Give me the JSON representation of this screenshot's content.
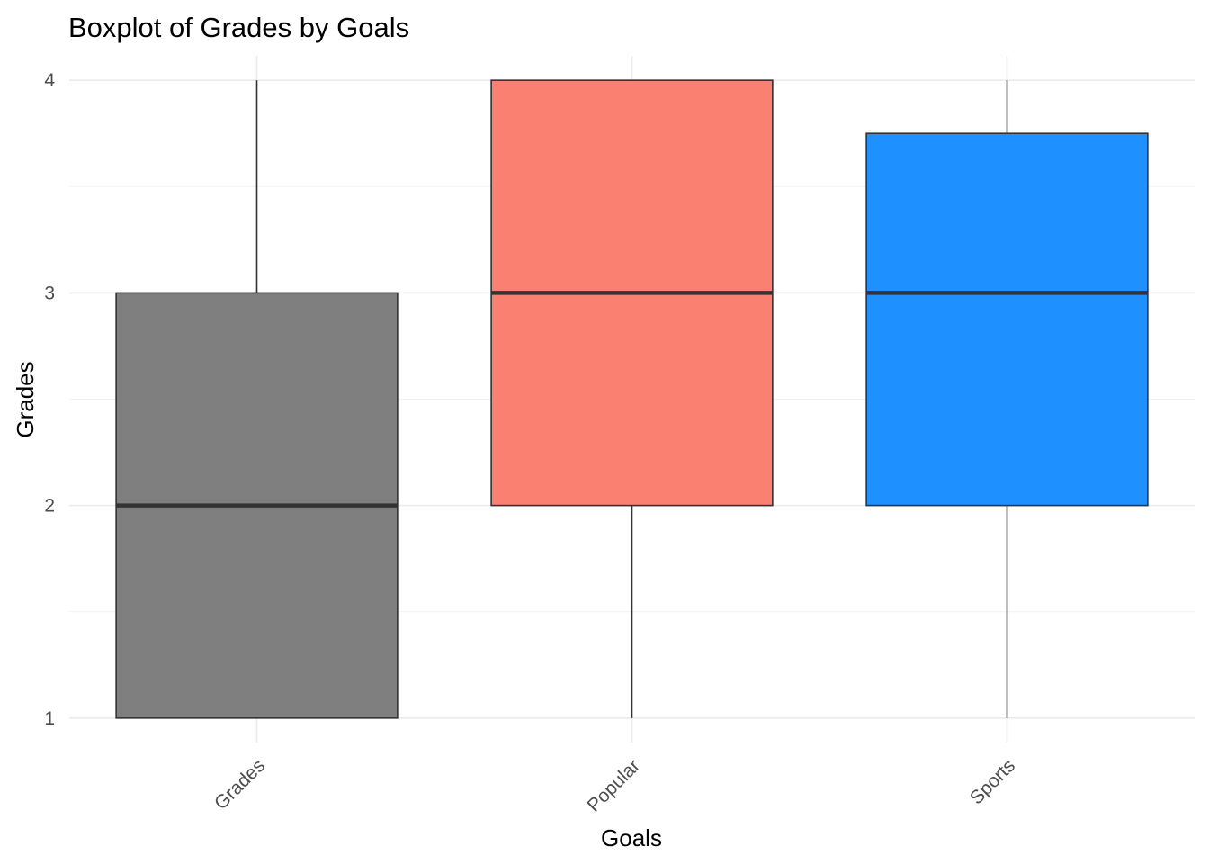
{
  "chart_data": {
    "type": "boxplot",
    "title": "Boxplot of Grades by Goals",
    "xlabel": "Goals",
    "ylabel": "Grades",
    "categories": [
      "Grades",
      "Popular",
      "Sports"
    ],
    "boxes": [
      {
        "category": "Grades",
        "min": 1,
        "q1": 1,
        "median": 2,
        "q3": 3,
        "max": 4,
        "color": "#7f7f7f"
      },
      {
        "category": "Popular",
        "min": 1,
        "q1": 2,
        "median": 3,
        "q3": 4,
        "max": 4,
        "color": "#fa8072"
      },
      {
        "category": "Sports",
        "min": 1,
        "q1": 2,
        "median": 3,
        "q3": 3.75,
        "max": 4,
        "color": "#1e90ff"
      }
    ],
    "yticks": [
      1,
      2,
      3,
      4
    ],
    "ylim": [
      0.885,
      4.115
    ],
    "grid": true,
    "legend": "none"
  }
}
